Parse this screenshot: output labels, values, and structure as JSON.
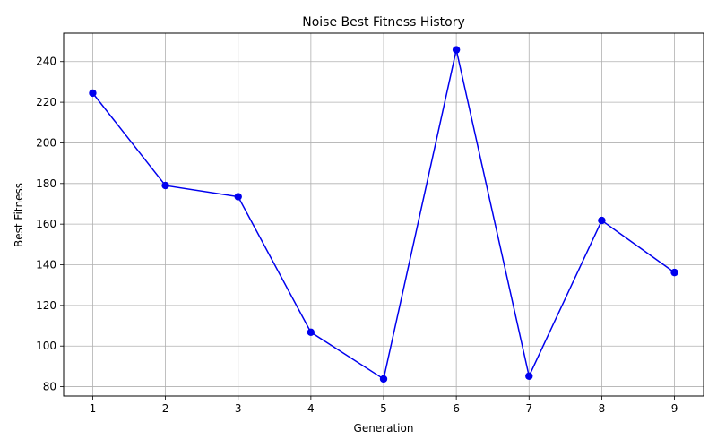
{
  "chart_data": {
    "type": "line",
    "title": "Noise Best Fitness History",
    "xlabel": "Generation",
    "ylabel": "Best Fitness",
    "x": [
      1,
      2,
      3,
      4,
      5,
      6,
      7,
      8,
      9
    ],
    "xticks": [
      1,
      2,
      3,
      4,
      5,
      6,
      7,
      8,
      9
    ],
    "yticks": [
      80,
      100,
      120,
      140,
      160,
      180,
      200,
      220,
      240
    ],
    "xlim": [
      0.6,
      9.4
    ],
    "ylim": [
      75.4,
      254.0
    ],
    "grid": true,
    "series": [
      {
        "values": [
          224.5,
          179.0,
          173.5,
          106.8,
          83.8,
          245.8,
          85.2,
          161.8,
          136.2
        ],
        "color": "#0000ee",
        "marker": "circle"
      }
    ]
  }
}
